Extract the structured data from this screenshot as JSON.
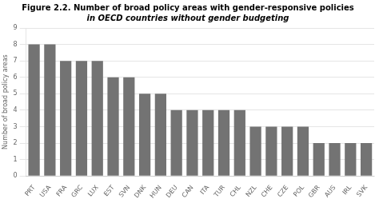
{
  "chart_data": {
    "type": "bar",
    "title": "Figure 2.2. Number of broad policy areas with gender-responsive policies",
    "subtitle": "in OECD countries without gender budgeting",
    "ylabel": "Number of broad policy areas",
    "categories": [
      "PRT",
      "USA",
      "FRA",
      "GRC",
      "LUX",
      "EST",
      "SVN",
      "DNK",
      "HUN",
      "DEU",
      "CAN",
      "ITA",
      "TUR",
      "CHL",
      "NZL",
      "CHE",
      "CZE",
      "POL",
      "GBR",
      "AUS",
      "IRL",
      "SVK"
    ],
    "values": [
      8,
      8,
      7,
      7,
      7,
      6,
      6,
      5,
      5,
      4,
      4,
      4,
      4,
      4,
      3,
      3,
      3,
      3,
      2,
      2,
      2,
      2
    ],
    "color": "#737373",
    "ylim": [
      0,
      9
    ],
    "yticks": [
      0,
      1,
      2,
      3,
      4,
      5,
      6,
      7,
      8,
      9
    ],
    "grid": true
  }
}
